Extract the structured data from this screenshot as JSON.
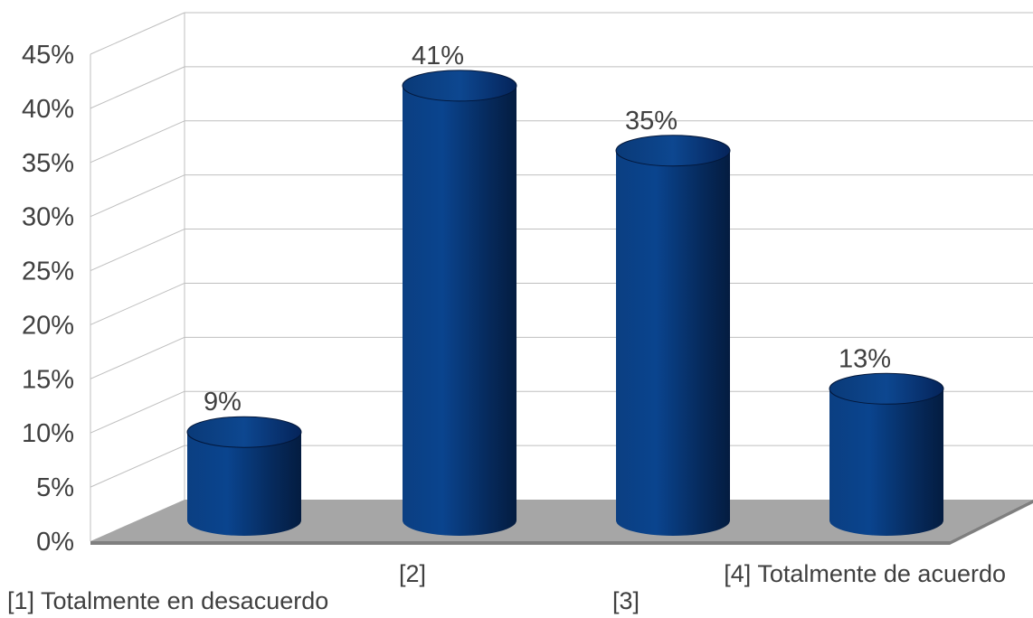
{
  "chart_data": {
    "type": "bar",
    "style": "3d-cylinder",
    "categories": [
      "[1] Totalmente en desacuerdo",
      "[2]",
      "[3]",
      "[4] Totalmente de acuerdo"
    ],
    "values": [
      9,
      41,
      35,
      13
    ],
    "data_labels": [
      "9%",
      "41%",
      "35%",
      "13%"
    ],
    "y_ticks": [
      "0%",
      "5%",
      "10%",
      "15%",
      "20%",
      "25%",
      "30%",
      "35%",
      "40%",
      "45%"
    ],
    "ylim": [
      0,
      45
    ],
    "grid": true,
    "legend": "none",
    "colors": {
      "bar": "#0a3d7e",
      "floor": "#a6a6a6",
      "grid": "#bfbfbf",
      "text": "#404040"
    }
  }
}
